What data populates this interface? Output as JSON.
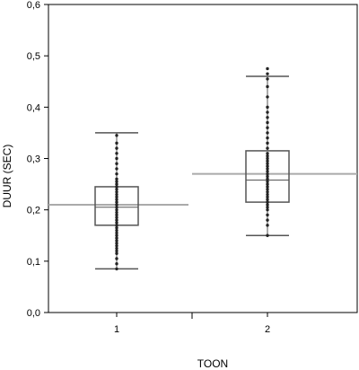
{
  "chart_data": {
    "type": "box",
    "xlabel": "TOON",
    "ylabel": "DUUR (SEC)",
    "ylim": [
      0,
      0.6
    ],
    "y_ticks": [
      "0,0",
      "0,1",
      "0,2",
      "0,3",
      "0,4",
      "0,5",
      "0,6"
    ],
    "y_tick_values": [
      0,
      0.1,
      0.2,
      0.3,
      0.4,
      0.5,
      0.6
    ],
    "categories": [
      "1",
      "2"
    ],
    "grid": false,
    "boxes": [
      {
        "category": "1",
        "whisker_low": 0.085,
        "q1": 0.17,
        "median": 0.205,
        "q3": 0.245,
        "whisker_high": 0.35,
        "mean": 0.21,
        "points": [
          0.085,
          0.095,
          0.105,
          0.115,
          0.12,
          0.125,
          0.13,
          0.135,
          0.14,
          0.145,
          0.15,
          0.155,
          0.16,
          0.165,
          0.17,
          0.175,
          0.18,
          0.185,
          0.19,
          0.195,
          0.2,
          0.205,
          0.21,
          0.215,
          0.22,
          0.225,
          0.23,
          0.235,
          0.24,
          0.245,
          0.25,
          0.255,
          0.26,
          0.27,
          0.28,
          0.29,
          0.3,
          0.31,
          0.32,
          0.33,
          0.345
        ]
      },
      {
        "category": "2",
        "whisker_low": 0.15,
        "q1": 0.215,
        "median": 0.258,
        "q3": 0.315,
        "whisker_high": 0.46,
        "mean": 0.27,
        "points": [
          0.15,
          0.17,
          0.18,
          0.19,
          0.2,
          0.205,
          0.21,
          0.215,
          0.22,
          0.225,
          0.23,
          0.235,
          0.24,
          0.245,
          0.25,
          0.255,
          0.26,
          0.265,
          0.27,
          0.275,
          0.28,
          0.285,
          0.29,
          0.295,
          0.3,
          0.305,
          0.31,
          0.32,
          0.33,
          0.34,
          0.35,
          0.36,
          0.37,
          0.38,
          0.39,
          0.4,
          0.42,
          0.44,
          0.455,
          0.465,
          0.475
        ]
      }
    ]
  }
}
